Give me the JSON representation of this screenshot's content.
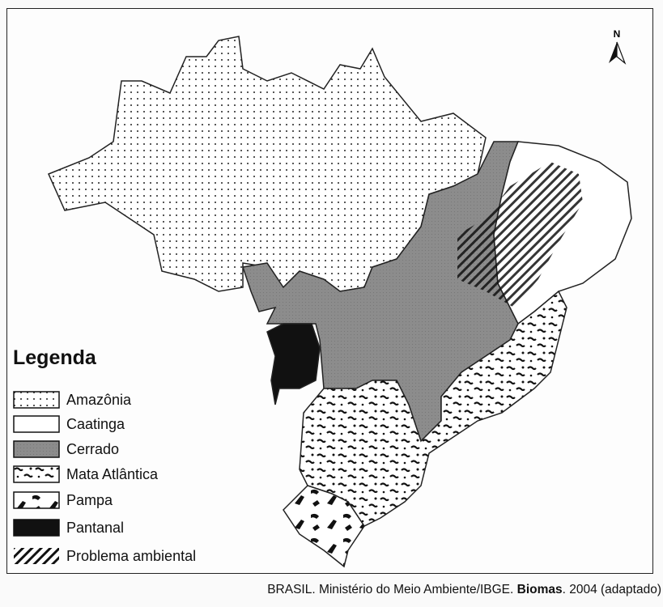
{
  "legend": {
    "title": "Legenda",
    "items": [
      {
        "label": "Amazônia",
        "pattern": "dots"
      },
      {
        "label": "Caatinga",
        "pattern": "white"
      },
      {
        "label": "Cerrado",
        "pattern": "gray",
        "color": "#8a8a8a"
      },
      {
        "label": "Mata Atlântica",
        "pattern": "small-black-blotches"
      },
      {
        "label": "Pampa",
        "pattern": "large-black-blotches"
      },
      {
        "label": "Pantanal",
        "pattern": "solid-black",
        "color": "#111111"
      },
      {
        "label": "Problema ambiental",
        "pattern": "diagonal-hatch"
      }
    ]
  },
  "north_arrow": {
    "label": "N",
    "icon": "north-arrow-icon"
  },
  "caption": {
    "prefix": "BRASIL. Ministério do Meio Ambiente/IBGE.",
    "title": "Biomas",
    "suffix": ". 2004 (adaptado)"
  }
}
